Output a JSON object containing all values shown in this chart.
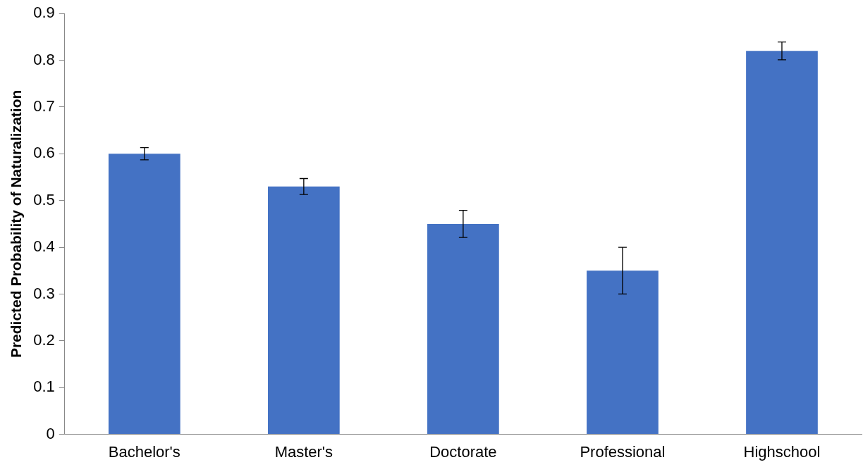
{
  "chart_data": {
    "type": "bar",
    "ylabel": "Predicted Probability of Naturalization",
    "categories": [
      "Bachelor's",
      "Master's",
      "Doctorate",
      "Professional",
      "Highschool"
    ],
    "values": [
      0.6,
      0.53,
      0.45,
      0.35,
      0.82
    ],
    "errors": [
      0.013,
      0.017,
      0.029,
      0.05,
      0.019
    ],
    "color": "#4472c4",
    "ylim": [
      0,
      0.9
    ],
    "yticks": [
      0,
      0.1,
      0.2,
      0.3,
      0.4,
      0.5,
      0.6,
      0.7,
      0.8,
      0.9
    ],
    "grid": false
  }
}
